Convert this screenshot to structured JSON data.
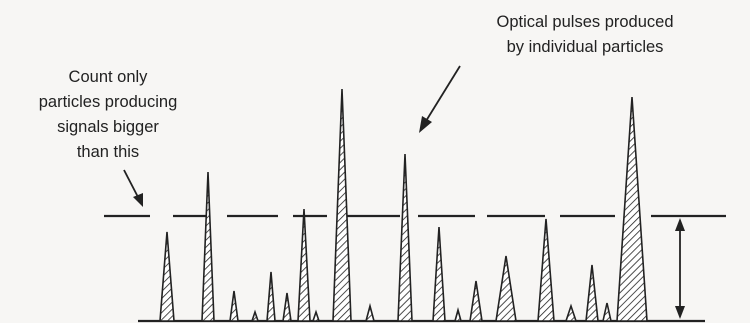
{
  "labels": {
    "threshold_note": [
      "Count only",
      "particles producing",
      "signals bigger",
      "than this"
    ],
    "pulse_note": [
      "Optical pulses produced",
      "by individual particles"
    ]
  },
  "colors": {
    "ink": "#222222",
    "paper": "#f7f6f4"
  }
}
